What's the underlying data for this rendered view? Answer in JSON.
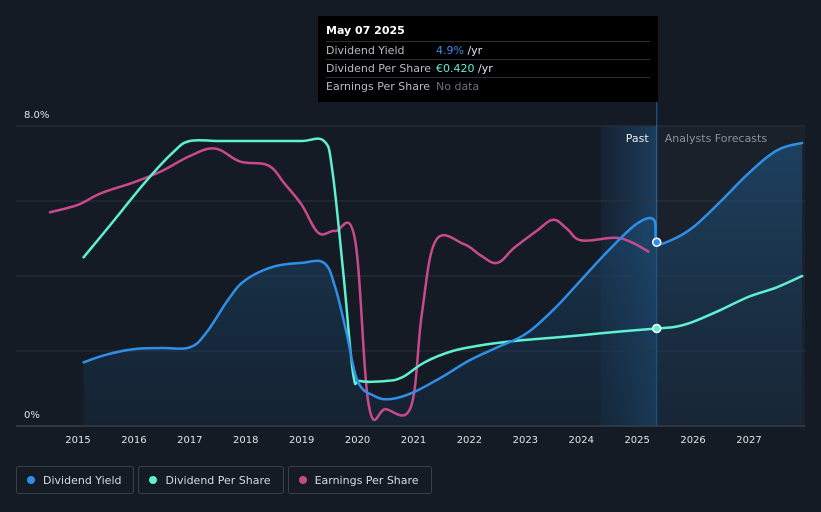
{
  "chart_data": {
    "type": "line",
    "x_range": [
      2014.5,
      2027.95
    ],
    "y_range_pct": [
      0,
      8.0
    ],
    "y_tick_labels": [
      "8.0%",
      "0%"
    ],
    "x_ticks": [
      2015,
      2016,
      2017,
      2018,
      2019,
      2020,
      2021,
      2022,
      2023,
      2024,
      2025,
      2026,
      2027
    ],
    "x_tick_labels": [
      "2015",
      "2016",
      "2017",
      "2018",
      "2019",
      "2020",
      "2021",
      "2022",
      "2023",
      "2024",
      "2025",
      "2026",
      "2027"
    ],
    "past_label": "Past",
    "forecast_label": "Analysts Forecasts",
    "forecast_start": 2025.35,
    "past_band_start": 2024.35,
    "grid": true,
    "series": [
      {
        "name": "Dividend Yield",
        "color": "#2f8fe8",
        "area": true,
        "values": [
          [
            2015.1,
            1.7
          ],
          [
            2015.5,
            1.9
          ],
          [
            2016.0,
            2.05
          ],
          [
            2016.5,
            2.08
          ],
          [
            2017.0,
            2.1
          ],
          [
            2017.3,
            2.5
          ],
          [
            2017.7,
            3.4
          ],
          [
            2018.0,
            3.9
          ],
          [
            2018.5,
            4.25
          ],
          [
            2019.0,
            4.35
          ],
          [
            2019.4,
            4.35
          ],
          [
            2019.6,
            3.7
          ],
          [
            2019.8,
            2.5
          ],
          [
            2020.0,
            1.2
          ],
          [
            2020.3,
            0.8
          ],
          [
            2020.6,
            0.72
          ],
          [
            2021.0,
            0.9
          ],
          [
            2021.5,
            1.3
          ],
          [
            2022.0,
            1.75
          ],
          [
            2022.5,
            2.1
          ],
          [
            2023.0,
            2.45
          ],
          [
            2023.5,
            3.1
          ],
          [
            2024.0,
            3.9
          ],
          [
            2024.5,
            4.7
          ],
          [
            2025.0,
            5.4
          ],
          [
            2025.3,
            5.5
          ],
          [
            2025.35,
            4.9
          ],
          [
            2025.6,
            4.95
          ],
          [
            2026.0,
            5.3
          ],
          [
            2026.5,
            6.0
          ],
          [
            2027.0,
            6.75
          ],
          [
            2027.5,
            7.35
          ],
          [
            2027.95,
            7.55
          ]
        ]
      },
      {
        "name": "Dividend Per Share",
        "color": "#5ef0d0",
        "area": false,
        "values": [
          [
            2015.1,
            4.5
          ],
          [
            2015.6,
            5.4
          ],
          [
            2016.2,
            6.5
          ],
          [
            2016.7,
            7.3
          ],
          [
            2017.0,
            7.6
          ],
          [
            2017.5,
            7.6
          ],
          [
            2018.0,
            7.6
          ],
          [
            2018.5,
            7.6
          ],
          [
            2019.0,
            7.6
          ],
          [
            2019.4,
            7.6
          ],
          [
            2019.55,
            6.8
          ],
          [
            2019.75,
            4.0
          ],
          [
            2019.92,
            1.4
          ],
          [
            2020.05,
            1.2
          ],
          [
            2020.5,
            1.2
          ],
          [
            2020.8,
            1.3
          ],
          [
            2021.2,
            1.7
          ],
          [
            2021.7,
            2.0
          ],
          [
            2022.2,
            2.15
          ],
          [
            2022.7,
            2.25
          ],
          [
            2023.2,
            2.32
          ],
          [
            2023.7,
            2.38
          ],
          [
            2024.2,
            2.45
          ],
          [
            2024.7,
            2.52
          ],
          [
            2025.35,
            2.6
          ],
          [
            2025.7,
            2.65
          ],
          [
            2026.0,
            2.78
          ],
          [
            2026.5,
            3.1
          ],
          [
            2027.0,
            3.45
          ],
          [
            2027.5,
            3.7
          ],
          [
            2027.95,
            4.0
          ]
        ]
      },
      {
        "name": "Earnings Per Share",
        "color": "#c94a8c",
        "area": false,
        "values": [
          [
            2014.5,
            5.7
          ],
          [
            2015.0,
            5.9
          ],
          [
            2015.4,
            6.2
          ],
          [
            2016.0,
            6.5
          ],
          [
            2016.5,
            6.8
          ],
          [
            2017.0,
            7.2
          ],
          [
            2017.45,
            7.4
          ],
          [
            2017.9,
            7.05
          ],
          [
            2018.4,
            6.95
          ],
          [
            2018.7,
            6.45
          ],
          [
            2019.0,
            5.9
          ],
          [
            2019.3,
            5.15
          ],
          [
            2019.6,
            5.2
          ],
          [
            2019.95,
            5.0
          ],
          [
            2020.2,
            0.55
          ],
          [
            2020.5,
            0.45
          ],
          [
            2020.95,
            0.5
          ],
          [
            2021.15,
            3.0
          ],
          [
            2021.4,
            4.95
          ],
          [
            2021.9,
            4.85
          ],
          [
            2022.2,
            4.55
          ],
          [
            2022.5,
            4.35
          ],
          [
            2022.8,
            4.75
          ],
          [
            2023.2,
            5.2
          ],
          [
            2023.5,
            5.5
          ],
          [
            2023.75,
            5.25
          ],
          [
            2024.0,
            4.95
          ],
          [
            2024.6,
            5.02
          ],
          [
            2024.9,
            4.9
          ],
          [
            2025.2,
            4.65
          ]
        ]
      }
    ],
    "markers": [
      {
        "series": "Dividend Yield",
        "x": 2025.35,
        "y": 4.9
      },
      {
        "series": "Dividend Per Share",
        "x": 2025.35,
        "y": 2.6
      }
    ]
  },
  "tooltip": {
    "date": "May 07 2025",
    "rows": [
      {
        "label": "Dividend Yield",
        "value": "4.9%",
        "unit": " /yr"
      },
      {
        "label": "Dividend Per Share",
        "value": "€0.420",
        "unit": " /yr"
      },
      {
        "label": "Earnings Per Share",
        "value": "No data",
        "unit": ""
      }
    ]
  },
  "legend": [
    {
      "label": "Dividend Yield",
      "color": "#2f8fe8"
    },
    {
      "label": "Dividend Per Share",
      "color": "#5ef0d0"
    },
    {
      "label": "Earnings Per Share",
      "color": "#c94a8c"
    }
  ]
}
